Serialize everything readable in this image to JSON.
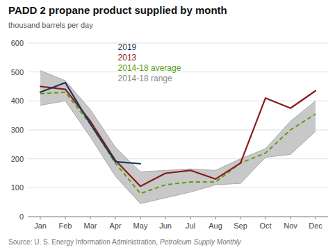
{
  "chart_data": {
    "type": "line",
    "title": "PADD 2 propane product supplied by month",
    "subtitle": "thousand barrels per day",
    "source": [
      "Source: U. S. Energy Information Administration,",
      "Petroleum Supply Monthly"
    ],
    "categories": [
      "Jan",
      "Feb",
      "Mar",
      "Apr",
      "May",
      "Jun",
      "Jul",
      "Aug",
      "Sep",
      "Oct",
      "Nov",
      "Dec"
    ],
    "series": [
      {
        "name": "2019",
        "color": "#1a3a5c",
        "values": [
          430,
          463,
          320,
          190,
          183,
          null,
          null,
          null,
          null,
          null,
          null,
          null
        ]
      },
      {
        "name": "2013",
        "color": "#8b1a1a",
        "values": [
          450,
          440,
          330,
          195,
          105,
          150,
          160,
          130,
          185,
          410,
          375,
          435
        ]
      },
      {
        "name": "2014-18 average",
        "color": "#5a9e10",
        "line_style": "dashed",
        "values": [
          425,
          430,
          320,
          185,
          80,
          110,
          120,
          120,
          185,
          220,
          300,
          355
        ]
      },
      {
        "name": "2014-18 range",
        "type": "range",
        "color": "#c8c8c8",
        "upper": [
          505,
          470,
          370,
          240,
          155,
          160,
          165,
          160,
          200,
          235,
          330,
          400
        ],
        "lower": [
          385,
          400,
          275,
          140,
          45,
          65,
          85,
          110,
          115,
          205,
          215,
          295
        ]
      }
    ],
    "ylim": [
      0,
      600
    ],
    "yticks": [
      0,
      100,
      200,
      300,
      400,
      500,
      600
    ],
    "grid": true,
    "legend": "top"
  }
}
